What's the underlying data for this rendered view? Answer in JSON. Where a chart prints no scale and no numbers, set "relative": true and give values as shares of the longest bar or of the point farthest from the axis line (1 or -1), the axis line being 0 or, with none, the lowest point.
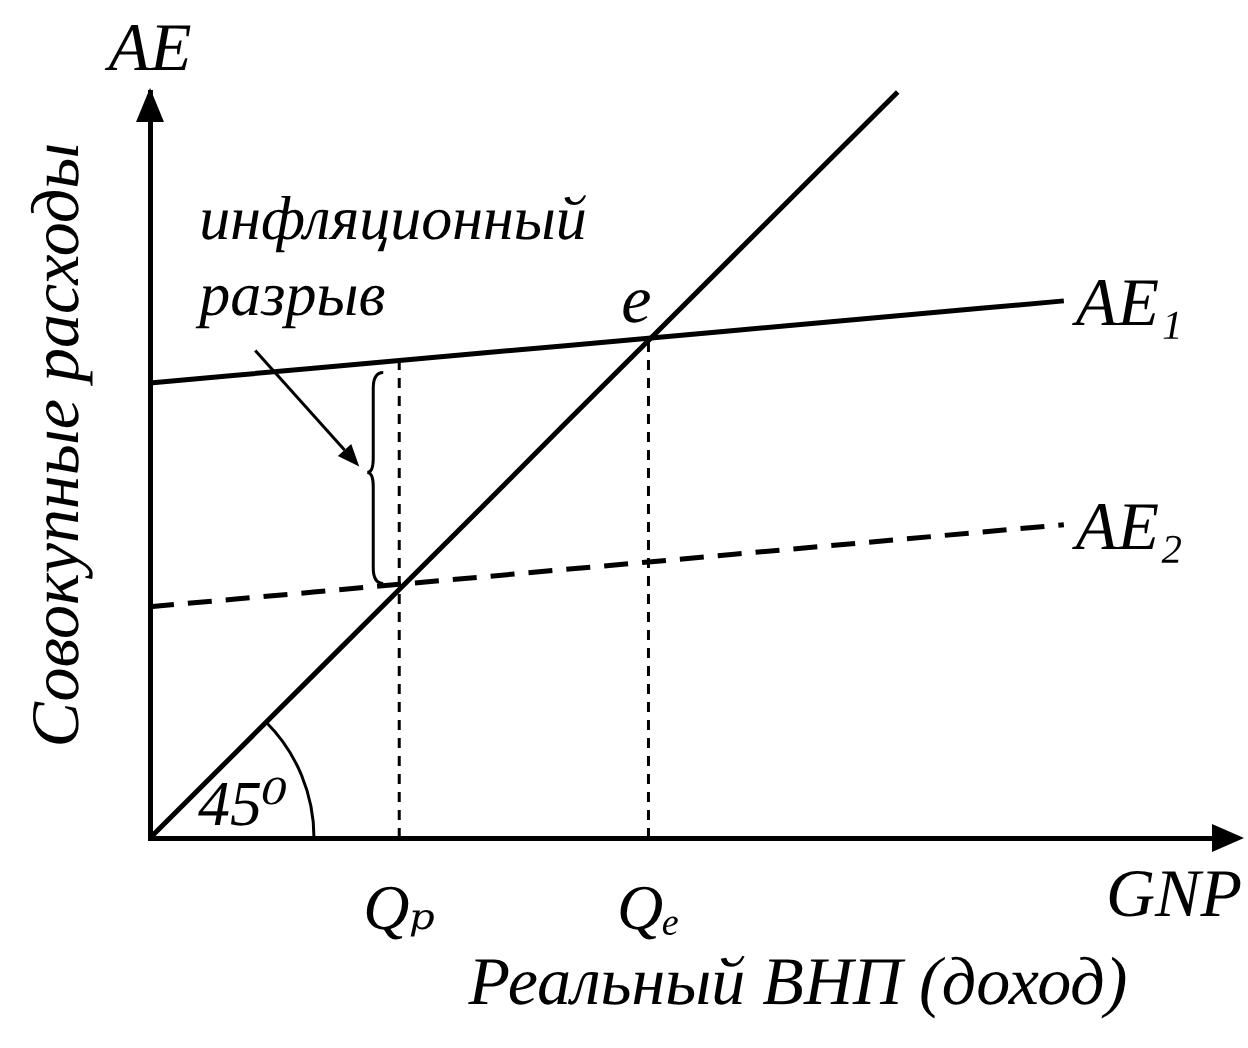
{
  "chart_data": {
    "type": "line",
    "relative": true,
    "categories": [
      null,
      null,
      null,
      "Qₚ",
      null,
      null,
      "Qₑ",
      null,
      null,
      null,
      null,
      null,
      null,
      null
    ],
    "xlabel": "Реальный ВНП (доход)",
    "ylabel": "Совокупные расходы",
    "series": [
      {
        "color": "#000000",
        "values": [
          0,
          0.111,
          0.222,
          0.333,
          0.444,
          0.556,
          0.667,
          0.778,
          0.889,
          1,
          null,
          null,
          null,
          null
        ]
      },
      {
        "name": "AE₁",
        "color": "#000000",
        "values": [
          0.61,
          0.62,
          0.63,
          0.64,
          0.65,
          0.66,
          0.67,
          0.68,
          0.69,
          0.7,
          0.71,
          0.72,
          null,
          null
        ]
      },
      {
        "name": "AE₂",
        "color": "#000000",
        "line_style": "dashed",
        "values": [
          0.31,
          0.32,
          0.33,
          0.34,
          0.35,
          0.36,
          0.37,
          0.38,
          0.39,
          0.4,
          0.41,
          0.42,
          null,
          null
        ]
      }
    ],
    "ref_lines": [
      {
        "axis": "x",
        "value": "Qₚ",
        "color": "#000000",
        "line_style": "dashed"
      },
      {
        "axis": "x",
        "value": "Qₑ",
        "color": "#000000",
        "line_style": "dashed"
      }
    ],
    "annotations": [
      "AE",
      "GNP",
      "45⁰",
      {
        "text": "e",
        "x": "Qₑ",
        "y": 0.67
      },
      {
        "text": "инфляционный разрыв",
        "x": "Qₚ",
        "y": 0.49
      }
    ]
  }
}
